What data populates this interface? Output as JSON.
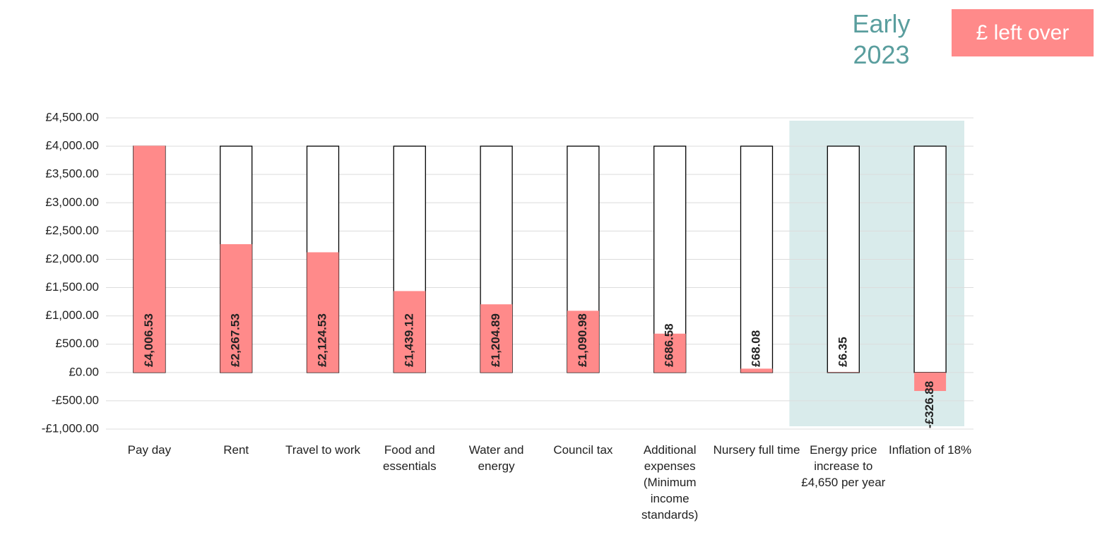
{
  "chart_data": {
    "type": "bar",
    "annotation": "Early 2023",
    "categories": [
      "Pay day",
      "Rent",
      "Travel to work",
      "Food and essentials",
      "Water and energy",
      "Council tax",
      "Additional expenses (Minimum income standards)",
      "Nursery full time",
      "Energy price increase to £4,650 per year",
      "Inflation of 18%"
    ],
    "series": [
      {
        "color": "#ffffff",
        "values": [
          4000,
          4000,
          4000,
          4000,
          4000,
          4000,
          4000,
          4000,
          4000,
          4000
        ]
      },
      {
        "name": "£ left over",
        "color": "#ff8a8a",
        "values": [
          4006.53,
          2267.53,
          2124.53,
          1439.12,
          1204.89,
          1090.98,
          686.58,
          68.08,
          6.35,
          -326.88
        ],
        "value_labels": [
          "£4,006.53",
          "£2,267.53",
          "£2,124.53",
          "£1,439.12",
          "£1,204.89",
          "£1,090.98",
          "£686.58",
          "£68.08",
          "£6.35",
          "-£326.88"
        ]
      }
    ],
    "ylim": [
      -1000,
      4500
    ],
    "yticks": [
      {
        "value": -1000,
        "label": "-£1,000.00"
      },
      {
        "value": -500,
        "label": "-£500.00"
      },
      {
        "value": 0,
        "label": "£0.00"
      },
      {
        "value": 500,
        "label": "£500.00"
      },
      {
        "value": 1000,
        "label": "£1,000.00"
      },
      {
        "value": 1500,
        "label": "£1,500.00"
      },
      {
        "value": 2000,
        "label": "£2,000.00"
      },
      {
        "value": 2500,
        "label": "£2,500.00"
      },
      {
        "value": 3000,
        "label": "£3,000.00"
      },
      {
        "value": 3500,
        "label": "£3,500.00"
      },
      {
        "value": 4000,
        "label": "£4,000.00"
      },
      {
        "value": 4500,
        "label": "£4,500.00"
      }
    ],
    "grid": true
  }
}
